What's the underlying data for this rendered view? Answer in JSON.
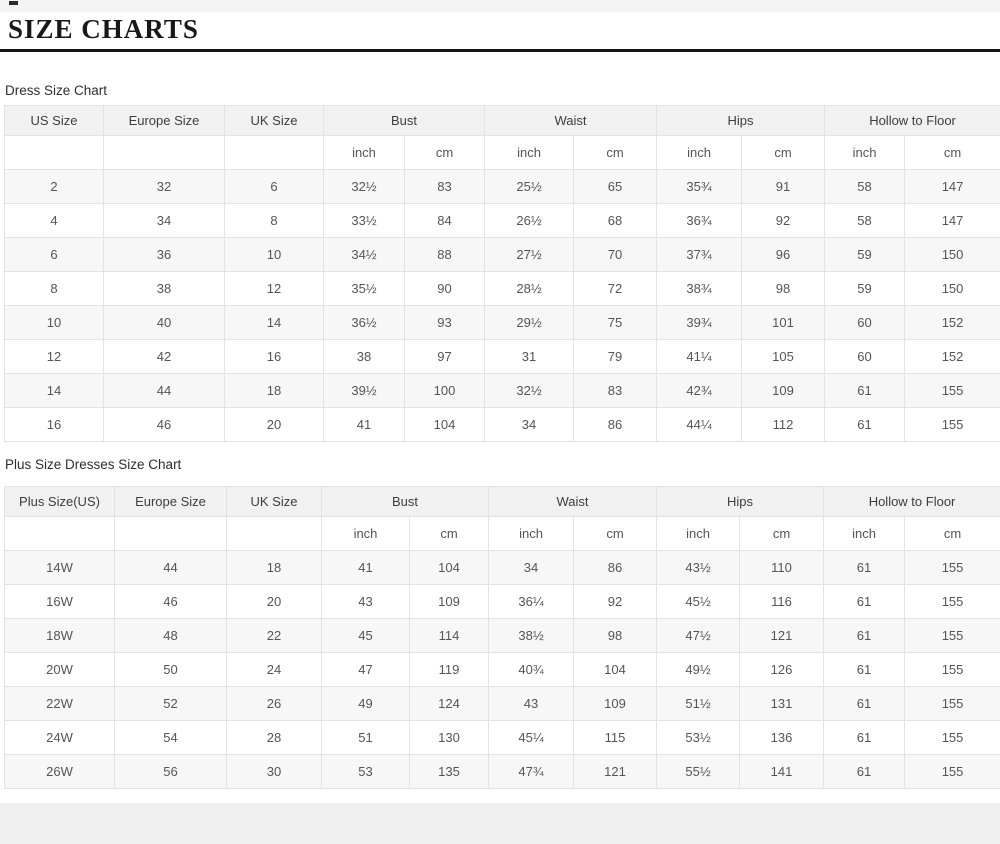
{
  "page_title": "SIZE CHARTS",
  "colors": {
    "header_bg": "#f1f1f1",
    "row_stripe": "#f7f7f7",
    "border": "#e3e3e3",
    "title_rule": "#151515",
    "footer_strip": "#efefef"
  },
  "charts": [
    {
      "label": "Dress Size Chart",
      "columns": [
        "US Size",
        "Europe Size",
        "UK Size"
      ],
      "groups": [
        "Bust",
        "Waist",
        "Hips",
        "Hollow to Floor"
      ],
      "units": [
        "inch",
        "cm"
      ],
      "rows": [
        [
          "2",
          "32",
          "6",
          "32½",
          "83",
          "25½",
          "65",
          "35¾",
          "91",
          "58",
          "147"
        ],
        [
          "4",
          "34",
          "8",
          "33½",
          "84",
          "26½",
          "68",
          "36¾",
          "92",
          "58",
          "147"
        ],
        [
          "6",
          "36",
          "10",
          "34½",
          "88",
          "27½",
          "70",
          "37¾",
          "96",
          "59",
          "150"
        ],
        [
          "8",
          "38",
          "12",
          "35½",
          "90",
          "28½",
          "72",
          "38¾",
          "98",
          "59",
          "150"
        ],
        [
          "10",
          "40",
          "14",
          "36½",
          "93",
          "29½",
          "75",
          "39¾",
          "101",
          "60",
          "152"
        ],
        [
          "12",
          "42",
          "16",
          "38",
          "97",
          "31",
          "79",
          "41¼",
          "105",
          "60",
          "152"
        ],
        [
          "14",
          "44",
          "18",
          "39½",
          "100",
          "32½",
          "83",
          "42¾",
          "109",
          "61",
          "155"
        ],
        [
          "16",
          "46",
          "20",
          "41",
          "104",
          "34",
          "86",
          "44¼",
          "112",
          "61",
          "155"
        ]
      ]
    },
    {
      "label": "Plus Size Dresses Size Chart",
      "columns": [
        "Plus Size(US)",
        "Europe Size",
        "UK Size"
      ],
      "groups": [
        "Bust",
        "Waist",
        "Hips",
        "Hollow to Floor"
      ],
      "units": [
        "inch",
        "cm"
      ],
      "rows": [
        [
          "14W",
          "44",
          "18",
          "41",
          "104",
          "34",
          "86",
          "43½",
          "110",
          "61",
          "155"
        ],
        [
          "16W",
          "46",
          "20",
          "43",
          "109",
          "36¼",
          "92",
          "45½",
          "116",
          "61",
          "155"
        ],
        [
          "18W",
          "48",
          "22",
          "45",
          "114",
          "38½",
          "98",
          "47½",
          "121",
          "61",
          "155"
        ],
        [
          "20W",
          "50",
          "24",
          "47",
          "119",
          "40¾",
          "104",
          "49½",
          "126",
          "61",
          "155"
        ],
        [
          "22W",
          "52",
          "26",
          "49",
          "124",
          "43",
          "109",
          "51½",
          "131",
          "61",
          "155"
        ],
        [
          "24W",
          "54",
          "28",
          "51",
          "130",
          "45¼",
          "115",
          "53½",
          "136",
          "61",
          "155"
        ],
        [
          "26W",
          "56",
          "30",
          "53",
          "135",
          "47¾",
          "121",
          "55½",
          "141",
          "61",
          "155"
        ]
      ]
    }
  ]
}
